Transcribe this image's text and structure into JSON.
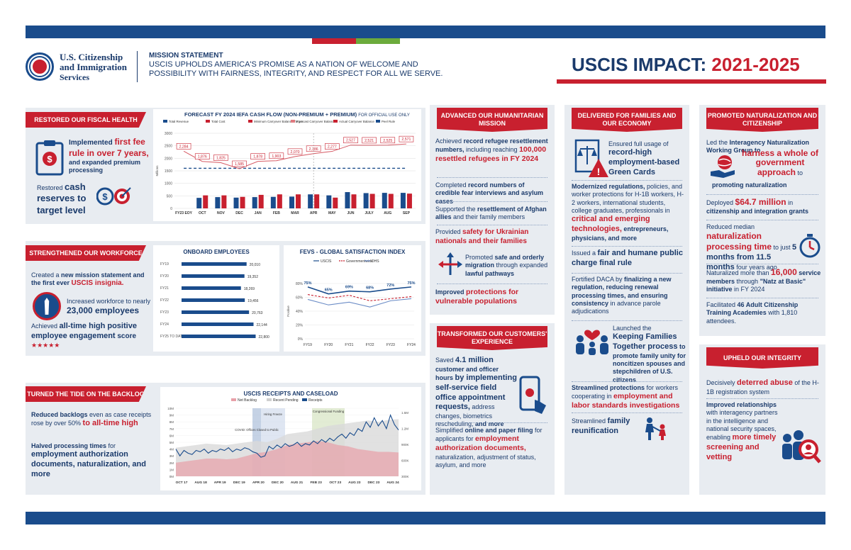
{
  "header": {
    "agency_line1": "U.S. Citizenship",
    "agency_line2": "and Immigration",
    "agency_line3": "Services",
    "mission_label": "MISSION STATEMENT",
    "mission_line1": "USCIS UPHOLDS AMERICA'S PROMISE AS A NATION OF WELCOME AND",
    "mission_line2": "POSSIBILITY WITH FAIRNESS, INTEGRITY, AND RESPECT FOR ALL WE SERVE.",
    "title_a": "USCIS IMPACT: ",
    "title_b": "2021-2025"
  },
  "colors": {
    "navy": "#1a4c8c",
    "red": "#c8202f",
    "green": "#6cab3c",
    "panel": "#e8ecf1"
  },
  "fiscal": {
    "header": "RESTORED OUR FISCAL HEALTH",
    "b1_a": "Implemented ",
    "b1_b": "first fee rule in over 7 years,",
    "b1_c": " and expanded premium processing",
    "b2_a": "Restored ",
    "b2_b": "cash reserves to target level",
    "icons": [
      "clipboard-dollar-icon",
      "coin-target-icon"
    ],
    "chart_title": "FORECAST FY 2024 IEFA CASH FLOW (NON-PREMIUM + PREMIUM)",
    "chart_note": "FOR OFFICIAL USE ONLY"
  },
  "chart_data": [
    {
      "type": "bar",
      "id": "cashflow",
      "title": "FORECAST FY 2024 IEFA CASH FLOW (NON-PREMIUM + PREMIUM)",
      "ylabel": "Millions",
      "legend": [
        "Total Revenue",
        "Total Cost",
        "Minimum Carryover Balance Target",
        "Forecast Carryover Balance",
        "Actual Carryover Balance",
        "Peel Rule"
      ],
      "categories": [
        "FY23 EOY",
        "OCT",
        "NOV",
        "DEC",
        "JAN",
        "FEB",
        "MAR",
        "APR",
        "MAY",
        "JUN",
        "JULY",
        "AUG",
        "SEP"
      ],
      "yticks": [
        "0",
        "500",
        "1000",
        "1500",
        "2000",
        "2500",
        "3000"
      ],
      "ylim": [
        0,
        3000
      ],
      "revenue": [
        null,
        420,
        450,
        430,
        450,
        460,
        470,
        560,
        520,
        650,
        610,
        620,
        620
      ],
      "cost": [
        null,
        520,
        520,
        460,
        540,
        560,
        560,
        560,
        430,
        560,
        580,
        580,
        590
      ],
      "balance": [
        2284,
        1876,
        1825,
        1585,
        1878,
        1903,
        2070,
        2186,
        2277,
        2527,
        2521,
        2525,
        2571
      ],
      "balance_labels": [
        "2,284",
        "1,876",
        "1,825",
        "1,585",
        "1,878",
        "1,903",
        "2,070",
        "2,186",
        "2,277",
        "2,527",
        "2,521",
        "2,525",
        "2,571"
      ],
      "minimum_target": 1600
    },
    {
      "type": "bar",
      "id": "employees",
      "title": "ONBOARD EMPLOYEES",
      "categories": [
        "FY19",
        "FY20",
        "FY21",
        "FY22",
        "FY23",
        "FY24",
        "FY25 TO DATE"
      ],
      "values": [
        20010,
        19352,
        18269,
        19456,
        20763,
        22144,
        22800
      ],
      "labels": [
        "20,010",
        "19,352",
        "18,269",
        "19,456",
        "20,763",
        "22,144",
        "22,800"
      ]
    },
    {
      "type": "line",
      "id": "fevs",
      "title": "FEVS - GLOBAL SATISFACTION INDEX",
      "legend": [
        "USCIS",
        "Governmentwide",
        "DHS"
      ],
      "ylabel": "Positive",
      "x": [
        "FY19",
        "FY20",
        "FY21",
        "FY22",
        "FY23",
        "FY24"
      ],
      "yticks": [
        "80%",
        "60%",
        "40%",
        "20%",
        "0%"
      ],
      "ylim": [
        0,
        80
      ],
      "series": [
        {
          "name": "USCIS",
          "values": [
            75,
            65,
            69,
            68,
            72,
            75
          ]
        },
        {
          "name": "Governmentwide",
          "values": [
            64,
            59,
            63,
            55,
            58,
            61
          ]
        },
        {
          "name": "DHS",
          "values": [
            57,
            49,
            53,
            46,
            55,
            58
          ]
        }
      ],
      "labels": [
        "75%",
        "65%",
        "69%",
        "68%",
        "72%",
        "75%"
      ]
    },
    {
      "type": "line",
      "id": "receipts",
      "title": "USCIS RECEIPTS AND CASELOAD",
      "legend": [
        "Net Backlog",
        "Recent Pending",
        "Receipts"
      ],
      "x": [
        "OCT 17",
        "AUG 18",
        "APR 19",
        "DEC 19",
        "APR 20",
        "DEC 20",
        "AUG 21",
        "FEB 23",
        "OCT 23",
        "AUG 23",
        "DEC 23",
        "AUG 24"
      ],
      "yticks_left": [
        "10M",
        "9M",
        "8M",
        "7M",
        "6M",
        "5M",
        "4M",
        "3M",
        "2M",
        "1M",
        "0M"
      ],
      "yticks_right": [
        "1.5M",
        "1.2M",
        "900K",
        "600K",
        "300K"
      ],
      "annotations": [
        "COVID: Offices Closed to Public",
        "Hiring Freeze",
        "Congressional Funding"
      ]
    }
  ],
  "workforce": {
    "header": "STRENGTHENED OUR WORKFORCE",
    "b1_a": "Created a ",
    "b1_b": "new mission statement and the first ever ",
    "b1_c": "USCIS insignia.",
    "b2_a": "Increased workforce to nearly ",
    "b2_b": "23,000 employees",
    "b3_a": "Achieved ",
    "b3_b": "all-time high positive employee engagement",
    "b3_c": " score ",
    "stars": "★★★★★"
  },
  "backlog": {
    "header": "TURNED THE TIDE ON THE BACKLOG",
    "b1_a": "Reduced backlogs ",
    "b1_b": "even as case receipts rose by over 50% ",
    "b1_c": "to all-time high",
    "b2_a": "Halved processing times",
    "b2_b": " for ",
    "b2_c": "employment authorization documents, naturalization, and more"
  },
  "humanitarian": {
    "header": "ADVANCED OUR HUMANITARIAN MISSION",
    "b1_a": "Achieved ",
    "b1_b": "record refugee resettlement numbers,",
    "b1_c": " including reaching ",
    "b1_d": "100,000 resettled refugees in FY 2024",
    "b2_a": "Completed ",
    "b2_b": "record numbers of credible fear interviews and asylum cases",
    "b3_a": "Supported the ",
    "b3_b": "resettlement of Afghan allies",
    "b3_c": " and their family members",
    "b4_a": "Provided ",
    "b4_b": "safety for Ukrainian nationals and their families",
    "b5_a": "Promoted ",
    "b5_b": "safe and orderly migration",
    "b5_c": " through expanded ",
    "b5_d": "lawful pathways",
    "b6_a": "Improved ",
    "b6_b": "protections for vulnerable populations"
  },
  "customers": {
    "header": "TRANSFORMED OUR CUSTOMERS' EXPERIENCE",
    "b1_a": "Saved ",
    "b1_b": "4.1 million",
    "b1_c": " customer and officer hours ",
    "b1_d": "by implementing self-service field office appointment requests,",
    "b1_e": " address changes, biometrics rescheduling, ",
    "b1_f": "and more",
    "b2_a": "Simplified ",
    "b2_b": "online and paper filing",
    "b2_c": " for applicants for ",
    "b2_d": "employment authorization documents,",
    "b2_e": " naturalization, adjustment of status, asylum, and more"
  },
  "families": {
    "header": "DELIVERED FOR FAMILIES AND OUR ECONOMY",
    "b1_a": "Ensured full usage of ",
    "b1_b": "record-high employment-based Green Cards",
    "b2_a": "Modernized regulations,",
    "b2_b": " policies, and worker protections for H-1B workers, H-2 workers, international students, college graduates, professionals in ",
    "b2_c": "critical and emerging technologies,",
    "b2_d": " entrepreneurs, physicians, and more",
    "b3_a": "Issued a ",
    "b3_b": "fair and humane public charge final rule",
    "b4_a": "Fortified DACA by ",
    "b4_b": "finalizing a new regulation, reducing renewal processing times, and ensuring consistency",
    "b4_c": " in advance parole adjudications",
    "b5_a": "Launched the ",
    "b5_b": "Keeping Families Together process",
    "b5_c": " to promote family unity for noncitizen spouses and stepchildren of U.S. citizens",
    "b6_a": "Streamlined protections",
    "b6_b": " for workers cooperating in ",
    "b6_c": "employment and labor standards investigations",
    "b7_a": "Streamlined ",
    "b7_b": "family reunification"
  },
  "naturalization": {
    "header": "PROMOTED NATURALIZATION AND CITIZENSHIP",
    "b1_a": "Led the ",
    "b1_b": "Interagency Naturalization Working Group to ",
    "b1_c": "harness a whole of government approach",
    "b1_d": " to ",
    "b1_e": "promoting naturalization",
    "b2_a": "Deployed ",
    "b2_b": "$64.7 million",
    "b2_c": " in ",
    "b2_d": "citizenship and integration grants",
    "b3_a": "Reduced median ",
    "b3_b": "naturalization processing time",
    "b3_c": " to just ",
    "b3_d": "5 months from 11.5 months",
    "b3_e": " four years ago",
    "b4_a": "Naturalized more than ",
    "b4_b": "16,000",
    "b4_c": " service members",
    "b4_d": " through ",
    "b4_e": "\"Natz at Basic\" initiative",
    "b4_f": " in FY 2024",
    "b5_a": "Facilitated ",
    "b5_b": "46 Adult Citizenship Training Academies",
    "b5_c": " with 1,810 attendees."
  },
  "integrity": {
    "header": "UPHELD OUR INTEGRITY",
    "b1_a": "Decisively ",
    "b1_b": "deterred abuse",
    "b1_c": " of the H-1B registration system",
    "b2_a": "Improved relationships",
    "b2_b": " with interagency partners in the intelligence and national security spaces,",
    "b2_c": " enabling ",
    "b2_d": "more timely screening and vetting"
  }
}
